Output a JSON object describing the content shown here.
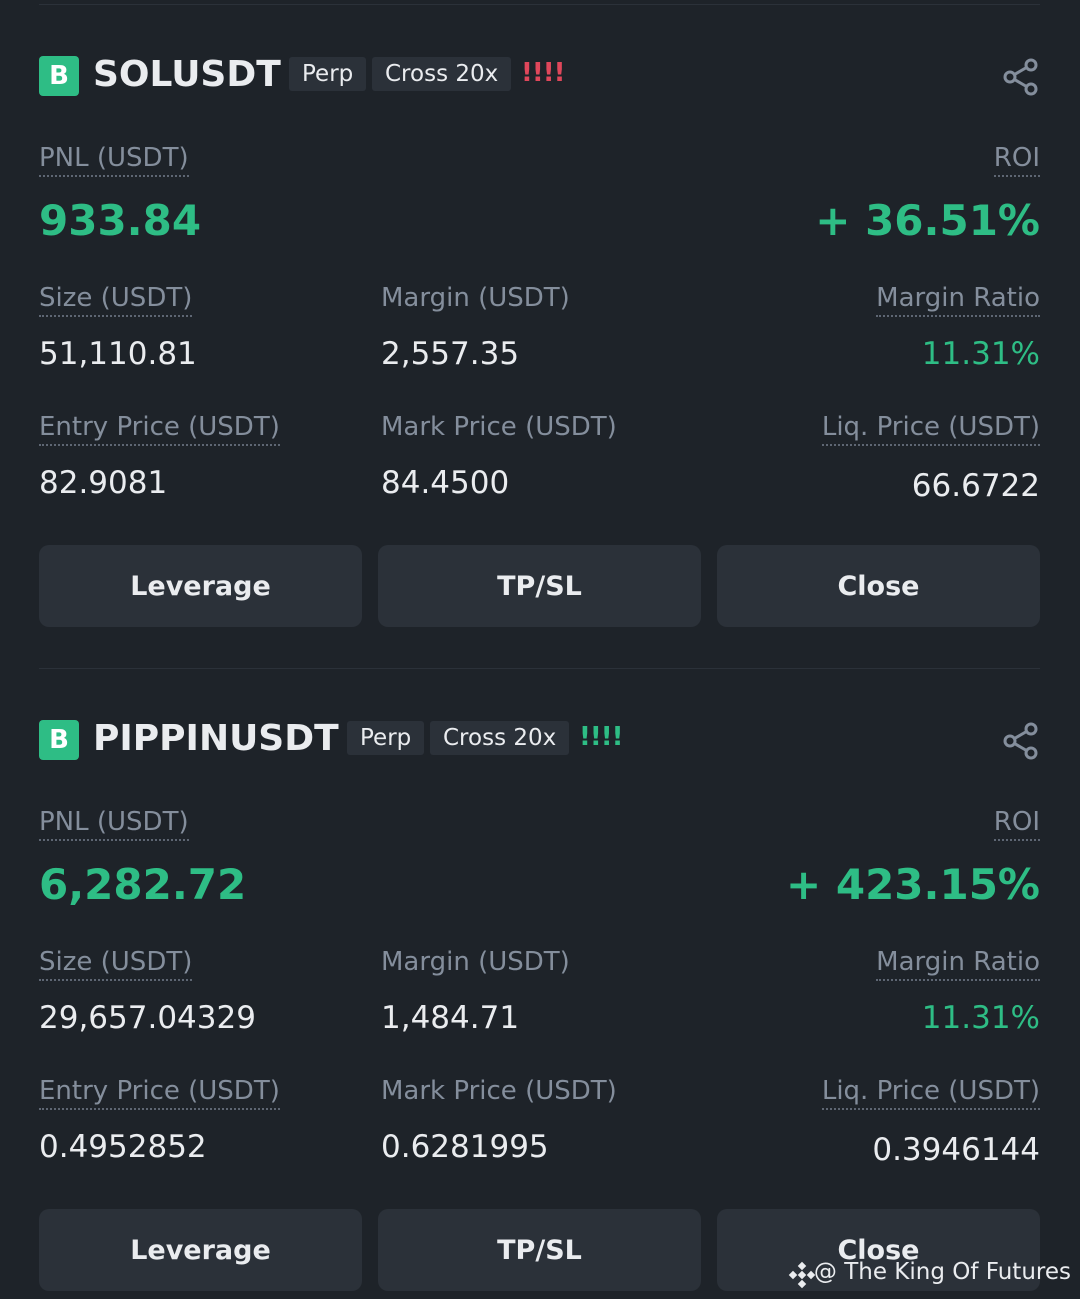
{
  "positions": [
    {
      "side": "B",
      "symbol": "SOLUSDT",
      "type": "Perp",
      "margin_mode": "Cross 20x",
      "risk": "!!!!",
      "risk_color": "#e0475b",
      "pnl_label": "PNL (USDT)",
      "pnl": "933.84",
      "roi_label": "ROI",
      "roi": "+ 36.51%",
      "fields": [
        {
          "label": "Size (USDT)",
          "value": "51,110.81"
        },
        {
          "label": "Margin (USDT)",
          "value": "2,557.35"
        },
        {
          "label": "Margin Ratio",
          "value": "11.31%"
        },
        {
          "label": "Entry Price (USDT)",
          "value": "82.9081"
        },
        {
          "label": "Mark Price (USDT)",
          "value": "84.4500"
        },
        {
          "label": "Liq. Price (USDT)",
          "value": "66.6722"
        }
      ],
      "buttons": [
        "Leverage",
        "TP/SL",
        "Close"
      ]
    },
    {
      "side": "B",
      "symbol": "PIPPINUSDT",
      "type": "Perp",
      "margin_mode": "Cross 20x",
      "risk": "!!!!",
      "risk_color": "#2ebd85",
      "pnl_label": "PNL (USDT)",
      "pnl": "6,282.72",
      "roi_label": "ROI",
      "roi": "+ 423.15%",
      "fields": [
        {
          "label": "Size (USDT)",
          "value": "29,657.04329"
        },
        {
          "label": "Margin (USDT)",
          "value": "1,484.71"
        },
        {
          "label": "Margin Ratio",
          "value": "11.31%"
        },
        {
          "label": "Entry Price (USDT)",
          "value": "0.4952852"
        },
        {
          "label": "Mark Price (USDT)",
          "value": "0.6281995"
        },
        {
          "label": "Liq. Price (USDT)",
          "value": "0.3946144"
        }
      ],
      "buttons": [
        "Leverage",
        "TP/SL",
        "Close"
      ]
    }
  ],
  "watermark": "@ The King Of Futures"
}
